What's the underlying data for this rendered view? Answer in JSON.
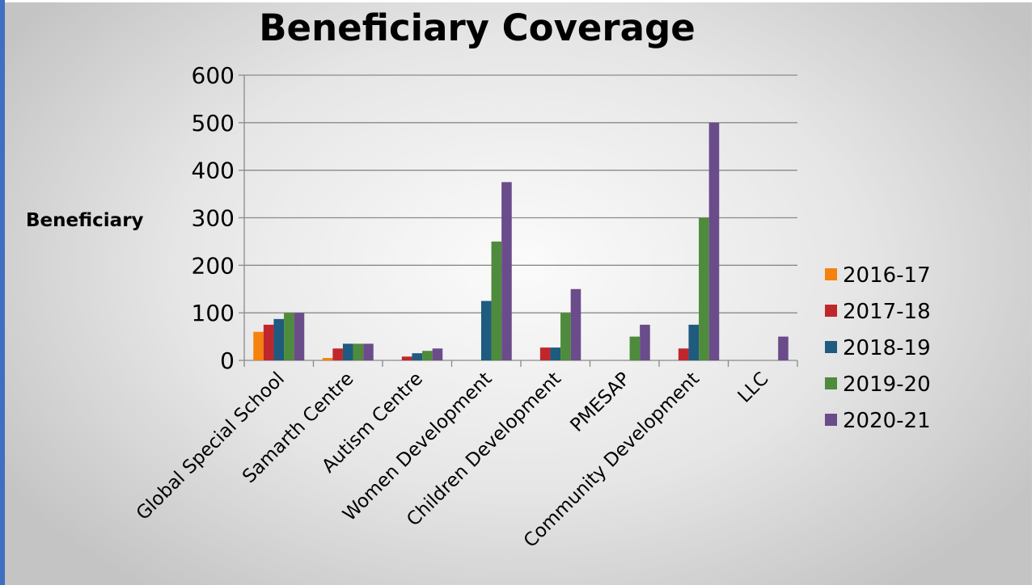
{
  "chart_data": {
    "type": "bar",
    "title": "Beneficiary  Coverage",
    "xlabel": "",
    "ylabel": "Beneficiary",
    "ylim": [
      0,
      600
    ],
    "yticks": [
      0,
      100,
      200,
      300,
      400,
      500,
      600
    ],
    "grid": true,
    "legend_position": "right",
    "categories": [
      "Global Special School",
      "Samarth Centre",
      "Autism Centre",
      "Women Development",
      "Children Development",
      "PMESAP",
      "Community Development",
      "LLC"
    ],
    "series": [
      {
        "name": "2016-17",
        "color": "#f5820d",
        "values": [
          60,
          5,
          0,
          0,
          0,
          0,
          0,
          0
        ]
      },
      {
        "name": "2017-18",
        "color": "#c0272d",
        "values": [
          75,
          25,
          8,
          0,
          27,
          0,
          25,
          0
        ]
      },
      {
        "name": "2018-19",
        "color": "#1f5a7f",
        "values": [
          87,
          35,
          15,
          125,
          27,
          0,
          75,
          0
        ]
      },
      {
        "name": "2019-20",
        "color": "#4f8b3c",
        "values": [
          100,
          35,
          20,
          250,
          100,
          50,
          300,
          0
        ]
      },
      {
        "name": "2020-21",
        "color": "#6b4c8a",
        "values": [
          100,
          35,
          25,
          375,
          150,
          75,
          500,
          50
        ]
      }
    ]
  }
}
